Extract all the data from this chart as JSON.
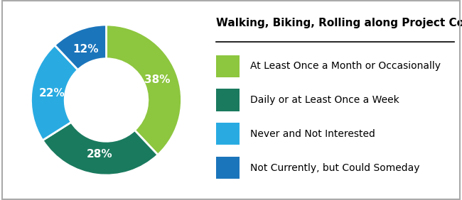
{
  "title": "Walking, Biking, Rolling along Project Corridor",
  "slices": [
    38,
    28,
    22,
    12
  ],
  "labels": [
    "38%",
    "28%",
    "22%",
    "12%"
  ],
  "colors": [
    "#8DC63F",
    "#1A7A5E",
    "#29ABE2",
    "#1B75BB"
  ],
  "legend_labels": [
    "At Least Once a Month or Occasionally",
    "Daily or at Least Once a Week",
    "Never and Not Interested",
    "Not Currently, but Could Someday"
  ],
  "legend_colors": [
    "#8DC63F",
    "#1A7A5E",
    "#29ABE2",
    "#1B75BB"
  ],
  "label_fontsize": 11,
  "title_fontsize": 11,
  "legend_fontsize": 10,
  "background_color": "#FFFFFF"
}
